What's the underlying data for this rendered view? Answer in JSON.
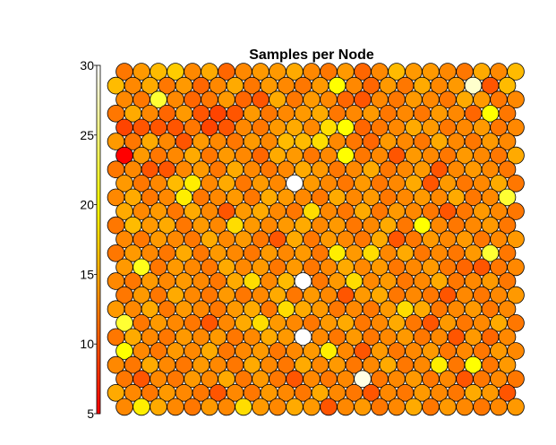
{
  "chart_data": {
    "type": "heatmap",
    "subtype": "hexagonal-som-sample-hits",
    "title": "Samples per Node",
    "grid": {
      "columns": 24,
      "rows": 25,
      "layout": "hexagonal",
      "odd_rows_offset": "left"
    },
    "colorbar": {
      "range": [
        5,
        30
      ],
      "ticks": [
        5,
        10,
        15,
        20,
        25,
        30
      ],
      "tick_labels": [
        "5",
        "10",
        "15",
        "20",
        "25",
        "30"
      ],
      "colormap": "hot",
      "placement": "left"
    },
    "values": [
      [
        12,
        14,
        12,
        14,
        13,
        15,
        11,
        13,
        14,
        12,
        15,
        13,
        12,
        14,
        11,
        13,
        15,
        12,
        14,
        13,
        12,
        15,
        13,
        14
      ],
      [
        16,
        13,
        15,
        12,
        14,
        11,
        13,
        15,
        12,
        14,
        13,
        12,
        14,
        16,
        13,
        11,
        14,
        12,
        15,
        13,
        14,
        12,
        13,
        16
      ],
      [
        13,
        12,
        14,
        13,
        15,
        12,
        14,
        11,
        13,
        15,
        12,
        14,
        13,
        11,
        15,
        13,
        12,
        14,
        13,
        12,
        15,
        14,
        12,
        13
      ],
      [
        12,
        15,
        13,
        11,
        14,
        13,
        12,
        15,
        14,
        12,
        13,
        14,
        15,
        12,
        13,
        14,
        11,
        13,
        12,
        14,
        13,
        11,
        14,
        12
      ],
      [
        9,
        13,
        12,
        14,
        12,
        11,
        10,
        13,
        12,
        14,
        15,
        13,
        12,
        14,
        11,
        12,
        13,
        15,
        14,
        12,
        13,
        14,
        12,
        13
      ],
      [
        14,
        12,
        15,
        13,
        12,
        14,
        13,
        12,
        14,
        13,
        16,
        12,
        15,
        13,
        12,
        11,
        14,
        13,
        12,
        15,
        13,
        12,
        14,
        13
      ],
      [
        13,
        14,
        12,
        13,
        15,
        12,
        14,
        13,
        11,
        15,
        14,
        12,
        13,
        14,
        12,
        13,
        15,
        14,
        13,
        12,
        14,
        13,
        12,
        15
      ],
      [
        12,
        13,
        14,
        12,
        13,
        14,
        12,
        15,
        13,
        12,
        13,
        15,
        14,
        12,
        13,
        15,
        12,
        13,
        14,
        12,
        13,
        14,
        13,
        12
      ],
      [
        14,
        12,
        13,
        16,
        12,
        13,
        15,
        12,
        14,
        13,
        12,
        14,
        13,
        12,
        14,
        12,
        13,
        15,
        12,
        14,
        12,
        13,
        15,
        12
      ],
      [
        13,
        15,
        12,
        13,
        14,
        12,
        13,
        14,
        12,
        15,
        14,
        13,
        12,
        15,
        13,
        14,
        12,
        13,
        14,
        13,
        15,
        12,
        13,
        17
      ],
      [
        15,
        13,
        14,
        12,
        15,
        13,
        12,
        14,
        15,
        13,
        12,
        14,
        13,
        12,
        15,
        12,
        14,
        13,
        12,
        15,
        12,
        14,
        13,
        12
      ],
      [
        12,
        16,
        14,
        15,
        12,
        14,
        13,
        12,
        14,
        13,
        14,
        15,
        13,
        14,
        12,
        13,
        15,
        12,
        14,
        13,
        12,
        13,
        14,
        12
      ],
      [
        13,
        12,
        14,
        13,
        12,
        15,
        13,
        14,
        12,
        13,
        15,
        12,
        14,
        13,
        12,
        15,
        13,
        12,
        14,
        13,
        14,
        12,
        13,
        14
      ],
      [
        12,
        14,
        13,
        12,
        15,
        12,
        14,
        13,
        12,
        14,
        13,
        14,
        12,
        13,
        14,
        12,
        13,
        15,
        12,
        13,
        12,
        14,
        15,
        12
      ],
      [
        14,
        13,
        12,
        14,
        13,
        12,
        15,
        13,
        14,
        12,
        14,
        12,
        13,
        15,
        13,
        14,
        12,
        13,
        14,
        12,
        13,
        15,
        12,
        13
      ],
      [
        13,
        12,
        14,
        13,
        14,
        13,
        12,
        15,
        13,
        13,
        16,
        13,
        12,
        14,
        12,
        13,
        14,
        12,
        13,
        15,
        12,
        13,
        14,
        12
      ],
      [
        12,
        14,
        12,
        15,
        13,
        12,
        14,
        12,
        13,
        15,
        12,
        14,
        13,
        12,
        14,
        15,
        12,
        13,
        12,
        14,
        13,
        12,
        13,
        14
      ],
      [
        14,
        13,
        15,
        12,
        14,
        13,
        12,
        14,
        15,
        12,
        13,
        15,
        14,
        12,
        13,
        12,
        14,
        13,
        15,
        12,
        13,
        14,
        12,
        13
      ],
      [
        13,
        12,
        14,
        13,
        12,
        14,
        13,
        15,
        12,
        14,
        13,
        12,
        14,
        15,
        12,
        13,
        15,
        12,
        13,
        14,
        12,
        13,
        15,
        12
      ],
      [
        12,
        15,
        13,
        12,
        14,
        13,
        14,
        12,
        13,
        15,
        14,
        12,
        13,
        12,
        14,
        12,
        13,
        14,
        12,
        13,
        15,
        14,
        12,
        13
      ],
      [
        14,
        13,
        12,
        14,
        13,
        15,
        12,
        13,
        14,
        12,
        13,
        14,
        12,
        13,
        15,
        14,
        12,
        13,
        14,
        12,
        13,
        12,
        14,
        13
      ],
      [
        13,
        12,
        15,
        13,
        12,
        14,
        13,
        12,
        15,
        13,
        12,
        15,
        13,
        14,
        12,
        13,
        15,
        12,
        13,
        14,
        12,
        13,
        12,
        14
      ],
      [
        12,
        14,
        13,
        12,
        14,
        13,
        15,
        12,
        14,
        12,
        14,
        13,
        12,
        13,
        14,
        12,
        13,
        14,
        12,
        13,
        14,
        12,
        13,
        12
      ],
      [
        15,
        13,
        12,
        14,
        13,
        12,
        14,
        13,
        12,
        14,
        13,
        12,
        15,
        13,
        12,
        14,
        13,
        12,
        14,
        13,
        12,
        15,
        14,
        13
      ],
      [
        13,
        14,
        15,
        13,
        12,
        14,
        13,
        12,
        14,
        13,
        15,
        14,
        12,
        13,
        14,
        12,
        13,
        15,
        12,
        14,
        13,
        12,
        13,
        14
      ]
    ],
    "overrides": [
      {
        "row": 0,
        "col": 2,
        "value": 16
      },
      {
        "row": 0,
        "col": 3,
        "value": 17
      },
      {
        "row": 0,
        "col": 9,
        "value": 14
      },
      {
        "row": 0,
        "col": 16,
        "value": 16
      },
      {
        "row": 0,
        "col": 17,
        "value": 14
      },
      {
        "row": 0,
        "col": 23,
        "value": 16
      },
      {
        "row": 1,
        "col": 13,
        "value": 20
      },
      {
        "row": 1,
        "col": 21,
        "value": 28
      },
      {
        "row": 1,
        "col": 22,
        "value": 10
      },
      {
        "row": 2,
        "col": 8,
        "value": 10
      },
      {
        "row": 2,
        "col": 4,
        "value": 11
      },
      {
        "row": 2,
        "col": 14,
        "value": 10
      },
      {
        "row": 2,
        "col": 2,
        "value": 22
      },
      {
        "row": 3,
        "col": 5,
        "value": 10
      },
      {
        "row": 3,
        "col": 6,
        "value": 9
      },
      {
        "row": 3,
        "col": 7,
        "value": 10
      },
      {
        "row": 3,
        "col": 16,
        "value": 12
      },
      {
        "row": 4,
        "col": 0,
        "value": 9
      },
      {
        "row": 4,
        "col": 1,
        "value": 10
      },
      {
        "row": 4,
        "col": 2,
        "value": 10
      },
      {
        "row": 4,
        "col": 3,
        "value": 10
      },
      {
        "row": 4,
        "col": 5,
        "value": 9
      },
      {
        "row": 4,
        "col": 6,
        "value": 10
      },
      {
        "row": 4,
        "col": 13,
        "value": 20
      },
      {
        "row": 4,
        "col": 12,
        "value": 18
      },
      {
        "row": 5,
        "col": 4,
        "value": 10
      },
      {
        "row": 5,
        "col": 12,
        "value": 18
      },
      {
        "row": 5,
        "col": 11,
        "value": 16
      },
      {
        "row": 6,
        "col": 13,
        "value": 20
      },
      {
        "row": 6,
        "col": 16,
        "value": 10
      },
      {
        "row": 7,
        "col": 2,
        "value": 10
      },
      {
        "row": 7,
        "col": 3,
        "value": 10
      },
      {
        "row": 7,
        "col": 19,
        "value": 10
      },
      {
        "row": 8,
        "col": 18,
        "value": 10
      },
      {
        "row": 8,
        "col": 4,
        "value": 19
      },
      {
        "row": 9,
        "col": 4,
        "value": 19
      },
      {
        "row": 9,
        "col": 23,
        "value": 22
      },
      {
        "row": 10,
        "col": 6,
        "value": 10
      },
      {
        "row": 10,
        "col": 19,
        "value": 10
      },
      {
        "row": 10,
        "col": 11,
        "value": 18
      },
      {
        "row": 11,
        "col": 18,
        "value": 20
      },
      {
        "row": 11,
        "col": 7,
        "value": 18
      },
      {
        "row": 12,
        "col": 9,
        "value": 10
      },
      {
        "row": 12,
        "col": 16,
        "value": 10
      },
      {
        "row": 13,
        "col": 13,
        "value": 19
      },
      {
        "row": 13,
        "col": 15,
        "value": 18
      },
      {
        "row": 14,
        "col": 21,
        "value": 10
      },
      {
        "row": 14,
        "col": 20,
        "value": 11
      },
      {
        "row": 15,
        "col": 14,
        "value": 18
      },
      {
        "row": 15,
        "col": 8,
        "value": 18
      },
      {
        "row": 16,
        "col": 13,
        "value": 10
      },
      {
        "row": 16,
        "col": 19,
        "value": 10
      },
      {
        "row": 17,
        "col": 10,
        "value": 18
      },
      {
        "row": 17,
        "col": 17,
        "value": 18
      },
      {
        "row": 18,
        "col": 5,
        "value": 10
      },
      {
        "row": 18,
        "col": 18,
        "value": 10
      },
      {
        "row": 18,
        "col": 8,
        "value": 18
      },
      {
        "row": 19,
        "col": 20,
        "value": 10
      },
      {
        "row": 19,
        "col": 22,
        "value": 11
      },
      {
        "row": 20,
        "col": 12,
        "value": 19
      },
      {
        "row": 20,
        "col": 14,
        "value": 10
      },
      {
        "row": 21,
        "col": 21,
        "value": 20
      },
      {
        "row": 21,
        "col": 19,
        "value": 19
      },
      {
        "row": 22,
        "col": 1,
        "value": 10
      },
      {
        "row": 22,
        "col": 10,
        "value": 10
      },
      {
        "row": 22,
        "col": 20,
        "value": 10
      },
      {
        "row": 23,
        "col": 6,
        "value": 10
      },
      {
        "row": 23,
        "col": 15,
        "value": 10
      },
      {
        "row": 23,
        "col": 23,
        "value": 10
      },
      {
        "row": 24,
        "col": 1,
        "value": 19
      },
      {
        "row": 24,
        "col": 7,
        "value": 18
      },
      {
        "row": 24,
        "col": 12,
        "value": 10
      },
      {
        "row": 8,
        "col": 10,
        "value": 30
      },
      {
        "row": 15,
        "col": 11,
        "value": 30
      },
      {
        "row": 19,
        "col": 11,
        "value": 30
      },
      {
        "row": 22,
        "col": 14,
        "value": 29
      },
      {
        "row": 18,
        "col": 0,
        "value": 22
      },
      {
        "row": 13,
        "col": 22,
        "value": 22
      },
      {
        "row": 14,
        "col": 1,
        "value": 21
      },
      {
        "row": 20,
        "col": 0,
        "value": 20
      },
      {
        "row": 6,
        "col": 0,
        "value": 5
      },
      {
        "row": 3,
        "col": 22,
        "value": 20
      }
    ]
  }
}
